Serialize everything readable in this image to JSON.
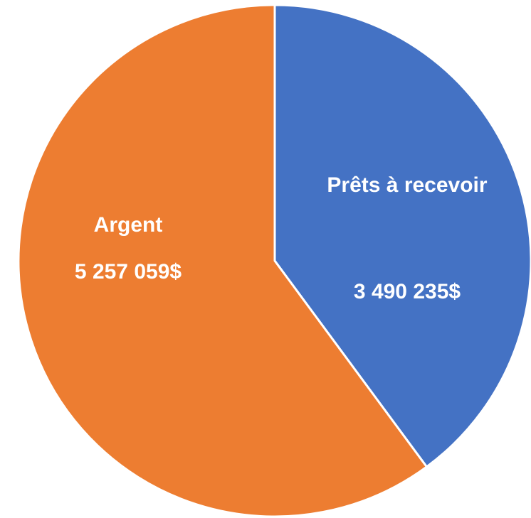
{
  "chart_data": {
    "type": "pie",
    "categories": [
      "Prêts à recevoir",
      "Argent"
    ],
    "values": [
      3490235,
      5257059
    ],
    "value_labels": [
      "3 490 235$",
      "5 257 059$"
    ],
    "colors": [
      "#4472c4",
      "#ed7d31"
    ]
  }
}
